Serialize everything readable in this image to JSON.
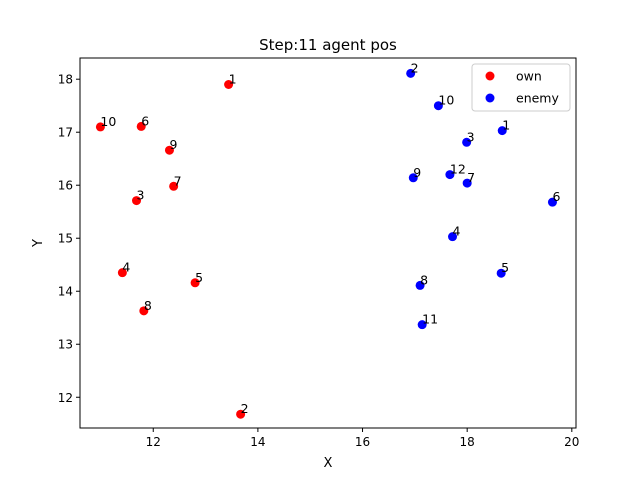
{
  "chart_data": {
    "type": "scatter",
    "title": "Step:11  agent pos",
    "xlabel": "X",
    "ylabel": "Y",
    "xlim": [
      10.6,
      20.08
    ],
    "ylim": [
      11.42,
      18.4
    ],
    "xticks": [
      12,
      14,
      16,
      18,
      20
    ],
    "yticks": [
      12,
      13,
      14,
      15,
      16,
      17,
      18
    ],
    "legend_position": "top-right",
    "grid": false,
    "series": [
      {
        "name": "own",
        "color": "#ff0000",
        "points": [
          {
            "label": "1",
            "x": 13.44,
            "y": 17.9
          },
          {
            "label": "10",
            "x": 10.99,
            "y": 17.1
          },
          {
            "label": "6",
            "x": 11.77,
            "y": 17.11
          },
          {
            "label": "9",
            "x": 12.31,
            "y": 16.66
          },
          {
            "label": "3",
            "x": 11.68,
            "y": 15.71
          },
          {
            "label": "7",
            "x": 12.39,
            "y": 15.98
          },
          {
            "label": "4",
            "x": 11.41,
            "y": 14.35
          },
          {
            "label": "5",
            "x": 12.8,
            "y": 14.16
          },
          {
            "label": "8",
            "x": 11.82,
            "y": 13.63
          },
          {
            "label": "2",
            "x": 13.67,
            "y": 11.68
          }
        ]
      },
      {
        "name": "enemy",
        "color": "#0000ff",
        "points": [
          {
            "label": "2",
            "x": 16.92,
            "y": 18.11
          },
          {
            "label": "10",
            "x": 17.45,
            "y": 17.5
          },
          {
            "label": "1",
            "x": 18.67,
            "y": 17.03
          },
          {
            "label": "3",
            "x": 17.99,
            "y": 16.81
          },
          {
            "label": "9",
            "x": 16.97,
            "y": 16.14
          },
          {
            "label": "12",
            "x": 17.67,
            "y": 16.2
          },
          {
            "label": "7",
            "x": 18.0,
            "y": 16.04
          },
          {
            "label": "6",
            "x": 19.63,
            "y": 15.68
          },
          {
            "label": "4",
            "x": 17.72,
            "y": 15.03
          },
          {
            "label": "5",
            "x": 18.65,
            "y": 14.34
          },
          {
            "label": "8",
            "x": 17.1,
            "y": 14.11
          },
          {
            "label": "11",
            "x": 17.14,
            "y": 13.37
          }
        ]
      }
    ]
  }
}
